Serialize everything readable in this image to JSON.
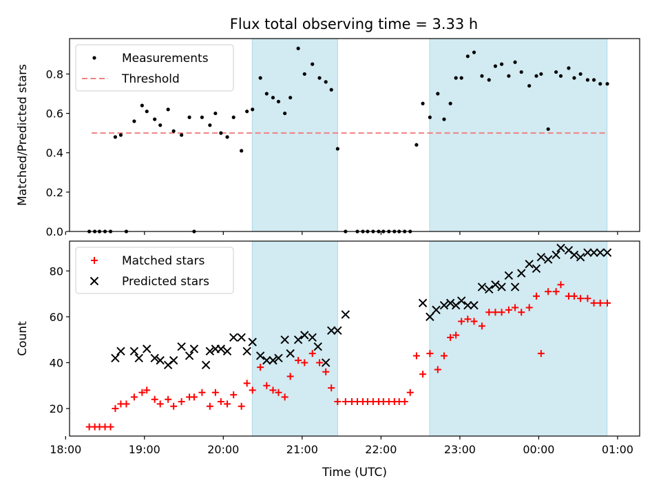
{
  "title": "Flux total observing time = 3.33 h",
  "colors": {
    "band": "#add8e6",
    "threshold": "#f08080",
    "measurements": "#000000",
    "matched": "#ff0000",
    "predicted": "#000000"
  },
  "chart_data": [
    {
      "type": "scatter",
      "ylabel": "Matched/Predicted stars",
      "ylim": [
        0,
        0.98
      ],
      "yticks": [
        0.0,
        0.2,
        0.4,
        0.6,
        0.8
      ],
      "ytick_labels": [
        "0.0",
        "0.2",
        "0.4",
        "0.6",
        "0.8"
      ],
      "xlim": [
        18.05,
        25.28
      ],
      "legend": "top-left",
      "legend_entries": [
        "Measurements",
        "Threshold"
      ],
      "shaded_intervals": [
        [
          "20:22",
          "21:27"
        ],
        [
          "22:37",
          "24:52"
        ]
      ],
      "threshold": {
        "name": "Threshold",
        "y": 0.5,
        "x_range": [
          18.33,
          24.87
        ]
      },
      "series": [
        {
          "name": "Measurements",
          "marker": "dot",
          "x": [
            18.3,
            18.37,
            18.43,
            18.5,
            18.57,
            18.63,
            18.7,
            18.77,
            18.87,
            18.97,
            19.03,
            19.13,
            19.2,
            19.3,
            19.37,
            19.47,
            19.57,
            19.63,
            19.73,
            19.83,
            19.9,
            19.97,
            20.05,
            20.13,
            20.23,
            20.3,
            20.37,
            20.47,
            20.55,
            20.63,
            20.7,
            20.78,
            20.85,
            20.95,
            21.03,
            21.13,
            21.22,
            21.3,
            21.37,
            21.45,
            21.55,
            21.7,
            21.77,
            21.83,
            21.9,
            21.97,
            22.03,
            22.1,
            22.17,
            22.23,
            22.3,
            22.37,
            22.45,
            22.53,
            22.62,
            22.72,
            22.8,
            22.88,
            22.95,
            23.02,
            23.1,
            23.18,
            23.28,
            23.37,
            23.45,
            23.53,
            23.62,
            23.7,
            23.78,
            23.88,
            23.97,
            24.03,
            24.12,
            24.22,
            24.28,
            24.38,
            24.45,
            24.53,
            24.62,
            24.7,
            24.78,
            24.87
          ],
          "y": [
            0.0,
            0.0,
            0.0,
            0.0,
            0.0,
            0.48,
            0.49,
            0.0,
            0.56,
            0.64,
            0.61,
            0.57,
            0.54,
            0.62,
            0.51,
            0.49,
            0.58,
            0.0,
            0.58,
            0.54,
            0.6,
            0.5,
            0.48,
            0.58,
            0.41,
            0.61,
            0.62,
            0.78,
            0.7,
            0.68,
            0.66,
            0.6,
            0.68,
            0.93,
            0.8,
            0.85,
            0.78,
            0.76,
            0.72,
            0.42,
            0.0,
            0.0,
            0.0,
            0.0,
            0.0,
            0.0,
            0.0,
            0.0,
            0.0,
            0.0,
            0.0,
            0.0,
            0.44,
            0.65,
            0.58,
            0.7,
            0.57,
            0.65,
            0.78,
            0.78,
            0.89,
            0.91,
            0.79,
            0.77,
            0.84,
            0.85,
            0.79,
            0.86,
            0.81,
            0.74,
            0.79,
            0.8,
            0.52,
            0.81,
            0.79,
            0.83,
            0.78,
            0.8,
            0.77,
            0.77,
            0.75,
            0.75
          ]
        }
      ]
    },
    {
      "type": "scatter",
      "xlabel": "Time (UTC)",
      "ylabel": "Count",
      "ylim": [
        8,
        93
      ],
      "yticks": [
        20,
        40,
        60,
        80
      ],
      "ytick_labels": [
        "20",
        "40",
        "60",
        "80"
      ],
      "xlim": [
        18.05,
        25.28
      ],
      "xticks": [
        18,
        19,
        20,
        21,
        22,
        23,
        24,
        25
      ],
      "xtick_labels": [
        "18:00",
        "19:00",
        "20:00",
        "21:00",
        "22:00",
        "23:00",
        "00:00",
        "01:00"
      ],
      "legend": "top-left",
      "legend_entries": [
        "Matched stars",
        "Predicted stars"
      ],
      "shaded_intervals": [
        [
          "20:22",
          "21:27"
        ],
        [
          "22:37",
          "24:52"
        ]
      ],
      "series": [
        {
          "name": "Matched stars",
          "marker": "plus",
          "x": [
            18.3,
            18.37,
            18.43,
            18.5,
            18.57,
            18.63,
            18.7,
            18.77,
            18.87,
            18.97,
            19.03,
            19.13,
            19.2,
            19.3,
            19.37,
            19.47,
            19.57,
            19.63,
            19.73,
            19.83,
            19.9,
            19.97,
            20.05,
            20.13,
            20.23,
            20.3,
            20.37,
            20.47,
            20.55,
            20.63,
            20.7,
            20.78,
            20.85,
            20.95,
            21.03,
            21.13,
            21.22,
            21.3,
            21.37,
            21.45,
            21.55,
            21.63,
            21.7,
            21.77,
            21.83,
            21.9,
            21.97,
            22.03,
            22.1,
            22.17,
            22.23,
            22.3,
            22.37,
            22.45,
            22.53,
            22.62,
            22.72,
            22.8,
            22.88,
            22.95,
            23.02,
            23.1,
            23.18,
            23.28,
            23.37,
            23.45,
            23.53,
            23.62,
            23.7,
            23.78,
            23.88,
            23.97,
            24.03,
            24.12,
            24.22,
            24.28,
            24.38,
            24.45,
            24.53,
            24.62,
            24.7,
            24.78,
            24.87
          ],
          "y": [
            12,
            12,
            12,
            12,
            12,
            20,
            22,
            22,
            25,
            27,
            28,
            24,
            22,
            24,
            21,
            23,
            25,
            25,
            27,
            21,
            27,
            23,
            22,
            26,
            21,
            31,
            28,
            38,
            30,
            28,
            27,
            25,
            34,
            41,
            40,
            44,
            40,
            36,
            29,
            23,
            23,
            23,
            23,
            23,
            23,
            23,
            23,
            23,
            23,
            23,
            23,
            23,
            27,
            43,
            35,
            44,
            37,
            43,
            51,
            52,
            58,
            59,
            58,
            56,
            62,
            62,
            62,
            63,
            64,
            62,
            64,
            69,
            44,
            71,
            71,
            74,
            69,
            69,
            68,
            68,
            66,
            66,
            66
          ]
        },
        {
          "name": "Predicted stars",
          "marker": "x",
          "x": [
            18.63,
            18.7,
            18.87,
            18.93,
            19.03,
            19.13,
            19.2,
            19.3,
            19.37,
            19.47,
            19.57,
            19.63,
            19.78,
            19.83,
            19.9,
            19.97,
            20.05,
            20.13,
            20.23,
            20.3,
            20.37,
            20.47,
            20.55,
            20.63,
            20.7,
            20.78,
            20.85,
            20.95,
            21.03,
            21.13,
            21.2,
            21.3,
            21.37,
            21.45,
            21.55,
            22.53,
            22.62,
            22.7,
            22.8,
            22.88,
            22.95,
            23.02,
            23.1,
            23.18,
            23.28,
            23.37,
            23.45,
            23.53,
            23.62,
            23.7,
            23.78,
            23.88,
            23.97,
            24.03,
            24.12,
            24.22,
            24.28,
            24.38,
            24.45,
            24.53,
            24.62,
            24.7,
            24.78,
            24.87
          ],
          "y": [
            42,
            45,
            45,
            42,
            46,
            42,
            41,
            39,
            41,
            47,
            43,
            46,
            39,
            45,
            46,
            46,
            45,
            51,
            51,
            45,
            49,
            43,
            41,
            41,
            42,
            50,
            44,
            50,
            52,
            51,
            47,
            40,
            54,
            54,
            61,
            66,
            60,
            63,
            65,
            66,
            65,
            67,
            65,
            65,
            73,
            72,
            74,
            73,
            78,
            73,
            79,
            83,
            81,
            86,
            85,
            87,
            90,
            89,
            87,
            86,
            88,
            88,
            88,
            88
          ]
        }
      ]
    }
  ]
}
